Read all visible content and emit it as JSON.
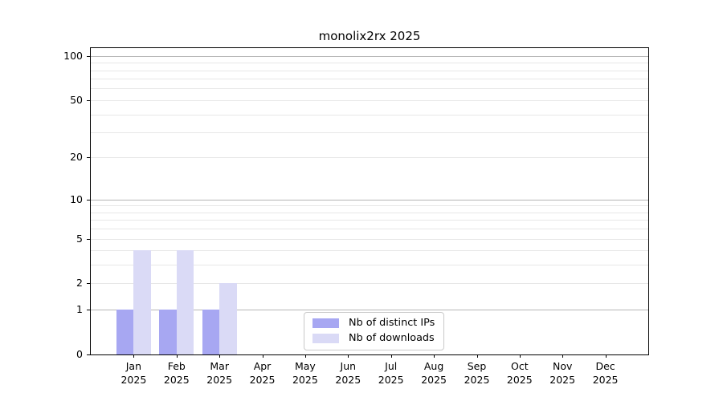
{
  "chart_data": {
    "type": "bar",
    "title": "monolix2rx 2025",
    "categories": [
      "Jan 2025",
      "Feb 2025",
      "Mar 2025",
      "Apr 2025",
      "May 2025",
      "Jun 2025",
      "Jul 2025",
      "Aug 2025",
      "Sep 2025",
      "Oct 2025",
      "Nov 2025",
      "Dec 2025"
    ],
    "series": [
      {
        "name": "Nb of distinct IPs",
        "color": "#a7a7f2",
        "values": [
          1,
          1,
          1,
          0,
          0,
          0,
          0,
          0,
          0,
          0,
          0,
          0
        ]
      },
      {
        "name": "Nb of downloads",
        "color": "#dadaf6",
        "values": [
          4,
          4,
          2,
          0,
          0,
          0,
          0,
          0,
          0,
          0,
          0,
          0
        ]
      }
    ],
    "xlabel": "",
    "ylabel": "",
    "y_scale": "log1p",
    "ylim": [
      0,
      113
    ],
    "y_major_ticks": [
      0,
      1,
      2,
      5,
      10,
      20,
      50,
      100
    ],
    "y_decade_ticks": [
      1,
      10,
      100
    ],
    "y_minor_gridlines": [
      3,
      4,
      6,
      7,
      8,
      9,
      30,
      40,
      60,
      70,
      80,
      90
    ],
    "bar_width_units": 0.4,
    "grid": "horizontal",
    "legend_position": "bottom-center-inside"
  },
  "colors": {
    "grid_decade": "#b5b5b5",
    "grid_regular": "#e7e7e7",
    "axis": "#000000",
    "background": "#ffffff"
  }
}
